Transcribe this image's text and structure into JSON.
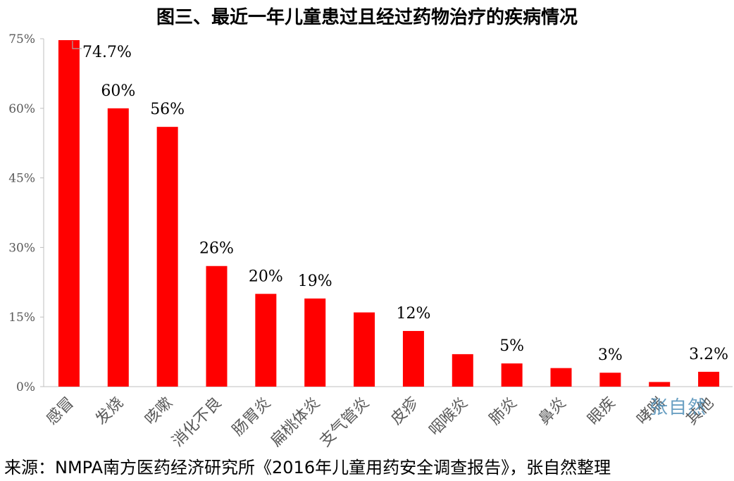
{
  "title": "图三、最近一年儿童患过且经过药物治疗的疾病情况",
  "source": "来源：NMPA南方医药经济研究所《2016年儿童用药安全调查报告》，张自然整理",
  "watermark": "张自然",
  "colors": {
    "bar": "#ff0000",
    "axis": "#bfbfbf",
    "leader": "#a6a6a6"
  },
  "chart_data": {
    "type": "bar",
    "title": "图三、最近一年儿童患过且经过药物治疗的疾病情况",
    "xlabel": "",
    "ylabel": "",
    "ylim": [
      0,
      75
    ],
    "yticks": [
      0,
      15,
      30,
      45,
      60,
      75
    ],
    "ytick_labels": [
      "0%",
      "15%",
      "30%",
      "45%",
      "60%",
      "75%"
    ],
    "grid": false,
    "legend": "none",
    "categories": [
      "感冒",
      "发烧",
      "咳嗽",
      "消化不良",
      "肠胃炎",
      "扁桃体炎",
      "支气管炎",
      "皮疹",
      "咽喉炎",
      "肺炎",
      "鼻炎",
      "眼疾",
      "哮喘",
      "其他"
    ],
    "values": [
      74.7,
      60,
      56,
      26,
      20,
      19,
      16,
      12,
      7,
      5,
      4,
      3,
      1,
      3.2
    ],
    "data_labels": [
      "74.7%",
      "60%",
      "56%",
      "26%",
      "20%",
      "19%",
      "",
      "12%",
      "",
      "5%",
      "",
      "3%",
      "",
      "3.2%"
    ]
  }
}
